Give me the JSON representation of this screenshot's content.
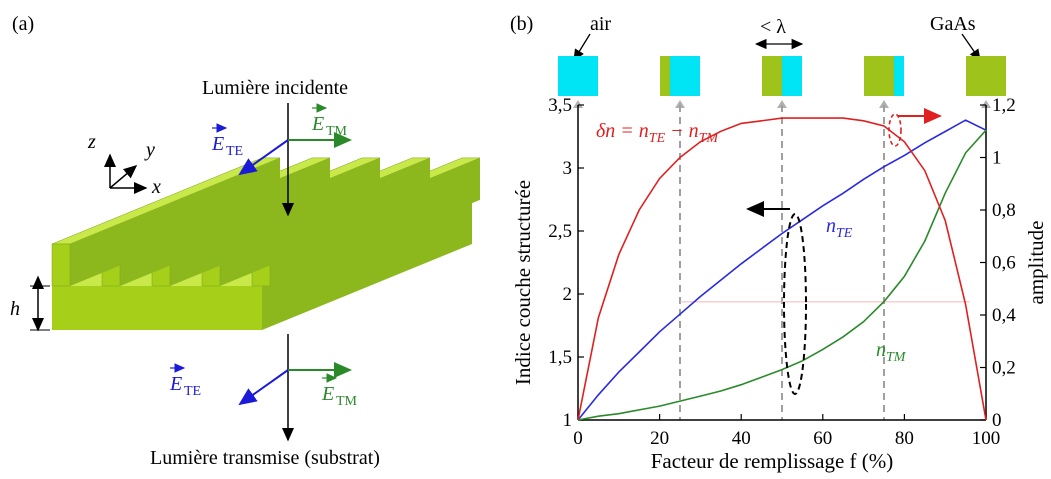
{
  "panel_a": {
    "label": "(a)",
    "incident": "Lumière incidente",
    "transmitted": "Lumière transmise (substrat)",
    "h_label": "h",
    "axes": {
      "z": "z",
      "y": "y",
      "x": "x"
    },
    "field_E": "E",
    "sub_TE": "TE",
    "sub_TM": "TM",
    "colors": {
      "grating_top": "#c9e84a",
      "grating_side": "#8cb81e",
      "grating_face": "#a6cf1a",
      "te": "#1a1ad8",
      "tm": "#2a8a2a"
    }
  },
  "panel_b": {
    "label": "(b)",
    "air_label": "air",
    "gaas_label": "GaAs",
    "period_label": "< λ",
    "fill_fractions": [
      0,
      0.25,
      0.5,
      0.75,
      1.0
    ],
    "colors": {
      "air": "#00e5f5",
      "gaas": "#9ec31a"
    },
    "delta_n_eq": "δn = n",
    "delta_n_te": "TE",
    "delta_n_minus": " − n",
    "delta_n_tm": "TM",
    "n_te_main": "n",
    "n_te_sub": "TE",
    "n_tm_main": "n",
    "n_tm_sub": "TM"
  },
  "chart_data": {
    "type": "line",
    "xlabel": "Facteur de remplissage  f (%)",
    "ylabel": "Indice couche structurée",
    "y2label": "amplitude",
    "xlim": [
      0,
      100
    ],
    "ylim": [
      1,
      3.5
    ],
    "y2lim": [
      0,
      1.2
    ],
    "xticks": [
      "0",
      "20",
      "40",
      "60",
      "80",
      "100"
    ],
    "yticks": [
      "1",
      "1,5",
      "2",
      "2,5",
      "3",
      "3,5"
    ],
    "y2ticks": [
      "0",
      "0,2",
      "0,4",
      "0,6",
      "0,8",
      "1",
      "1,2"
    ],
    "vlines": [
      25,
      50,
      75
    ],
    "x": [
      0,
      5,
      10,
      15,
      20,
      25,
      30,
      35,
      40,
      45,
      50,
      55,
      60,
      65,
      70,
      75,
      80,
      85,
      90,
      95,
      100
    ],
    "series": [
      {
        "name": "n_TE",
        "axis": "left",
        "color": "#2a2ae0",
        "values": [
          1.0,
          1.2,
          1.38,
          1.54,
          1.7,
          1.84,
          1.98,
          2.11,
          2.24,
          2.36,
          2.48,
          2.59,
          2.7,
          2.8,
          2.91,
          3.01,
          3.1,
          3.2,
          3.29,
          3.38,
          3.3
        ]
      },
      {
        "name": "n_TM",
        "axis": "left",
        "color": "#2a8a2a",
        "values": [
          1.0,
          1.03,
          1.05,
          1.08,
          1.11,
          1.15,
          1.19,
          1.23,
          1.28,
          1.34,
          1.4,
          1.47,
          1.56,
          1.66,
          1.78,
          1.94,
          2.14,
          2.42,
          2.8,
          3.12,
          3.3
        ]
      },
      {
        "name": "δn",
        "axis": "right",
        "color": "#e02020",
        "values": [
          0.0,
          0.39,
          0.63,
          0.8,
          0.92,
          1.0,
          1.06,
          1.1,
          1.13,
          1.14,
          1.15,
          1.15,
          1.15,
          1.15,
          1.14,
          1.12,
          1.06,
          0.95,
          0.76,
          0.44,
          0.0
        ]
      }
    ]
  }
}
